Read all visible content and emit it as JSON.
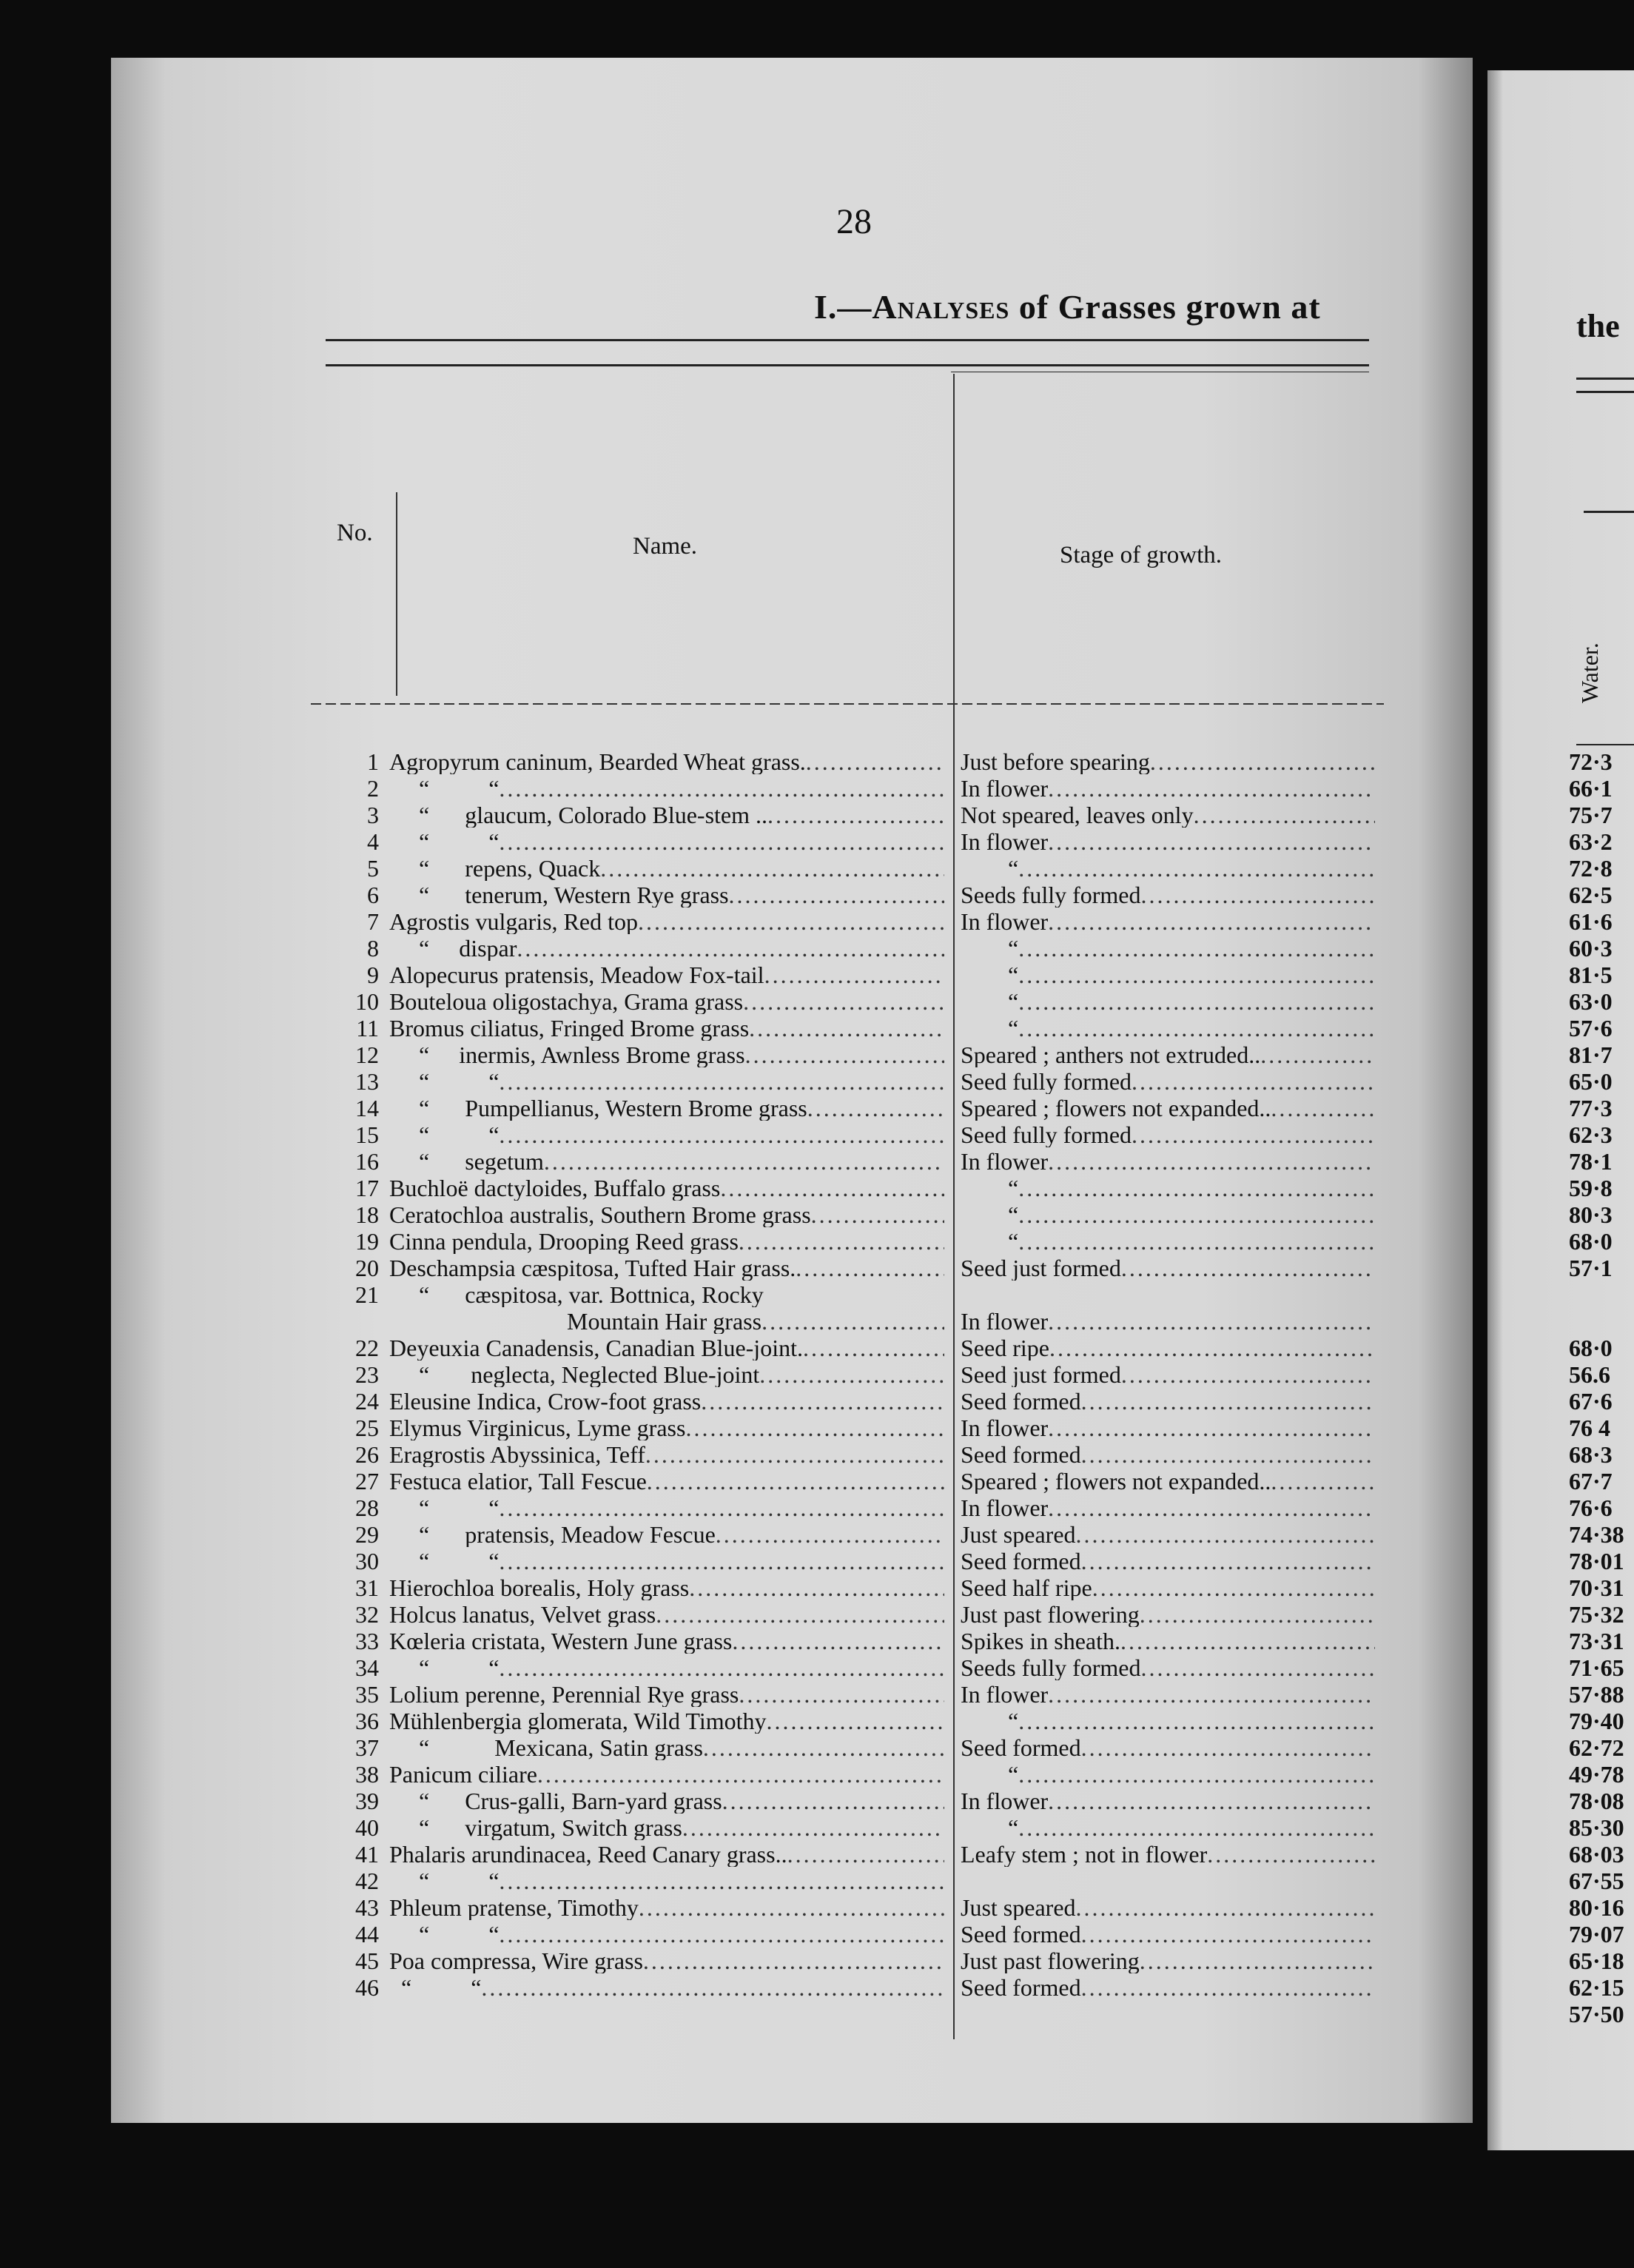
{
  "page_number": "28",
  "title_prefix": "I.—",
  "title_smallcaps": "Analyses",
  "title_rest": " of Grasses grown at",
  "right_page": {
    "title_fragment": "the",
    "column_header": "Water."
  },
  "headers": {
    "no": "No.",
    "name": "Name.",
    "stage": "Stage of growth."
  },
  "rows": [
    {
      "no": "1",
      "name": "Agropyrum caninum, Bearded Wheat grass.",
      "stage": "Just before spearing",
      "water": "72·3"
    },
    {
      "no": "2",
      "name": "     “          “",
      "stage": "In flower",
      "water": "66·1"
    },
    {
      "no": "3",
      "name": "     “      glaucum, Colorado Blue-stem ..",
      "stage": "Not speared, leaves only",
      "water": "75·7"
    },
    {
      "no": "4",
      "name": "     “          “",
      "stage": "In flower",
      "water": "63·2"
    },
    {
      "no": "5",
      "name": "     “      repens, Quack",
      "stage": "        “",
      "water": "72·8"
    },
    {
      "no": "6",
      "name": "     “      tenerum, Western Rye grass",
      "stage": "Seeds fully formed",
      "water": "62·5"
    },
    {
      "no": "7",
      "name": "Agrostis vulgaris, Red top",
      "stage": "In flower",
      "water": "61·6"
    },
    {
      "no": "8",
      "name": "     “     dispar",
      "stage": "        “",
      "water": "60·3"
    },
    {
      "no": "9",
      "name": "Alopecurus pratensis, Meadow Fox-tail",
      "stage": "        “",
      "water": "81·5"
    },
    {
      "no": "10",
      "name": "Bouteloua oligostachya, Grama grass",
      "stage": "        “",
      "water": "63·0"
    },
    {
      "no": "11",
      "name": "Bromus ciliatus, Fringed Brome grass",
      "stage": "        “",
      "water": "57·6"
    },
    {
      "no": "12",
      "name": "     “     inermis, Awnless Brome grass",
      "stage": "Speared ; anthers not extruded..",
      "water": "81·7"
    },
    {
      "no": "13",
      "name": "     “          “",
      "stage": "Seed fully formed",
      "water": "65·0"
    },
    {
      "no": "14",
      "name": "     “      Pumpellianus, Western Brome grass",
      "stage": "Speared ; flowers not expanded..",
      "water": "77·3"
    },
    {
      "no": "15",
      "name": "     “          “",
      "stage": "Seed fully formed",
      "water": "62·3"
    },
    {
      "no": "16",
      "name": "     “      segetum",
      "stage": "In flower",
      "water": "78·1"
    },
    {
      "no": "17",
      "name": "Buchloë dactyloides, Buffalo grass",
      "stage": "        “",
      "water": "59·8"
    },
    {
      "no": "18",
      "name": "Ceratochloa australis, Southern Brome grass",
      "stage": "        “",
      "water": "80·3"
    },
    {
      "no": "19",
      "name": "Cinna pendula, Drooping Reed grass",
      "stage": "        “",
      "water": "68·0"
    },
    {
      "no": "20",
      "name": "Deschampsia cæspitosa, Tufted Hair grass.",
      "stage": "Seed just formed",
      "water": "57·1"
    },
    {
      "no": "21",
      "name": "     “      cæspitosa, var. Bottnica, Rocky",
      "name2": "                              Mountain Hair grass",
      "stage": "In flower",
      "water": ""
    },
    {
      "no": "22",
      "name": "Deyeuxia Canadensis, Canadian Blue-joint.",
      "stage": "Seed ripe",
      "water": "68·0"
    },
    {
      "no": "23",
      "name": "     “       neglecta, Neglected Blue-joint",
      "stage": "Seed just formed",
      "water": "56.6"
    },
    {
      "no": "24",
      "name": "Eleusine Indica, Crow-foot grass",
      "stage": "Seed formed",
      "water": "67·6"
    },
    {
      "no": "25",
      "name": "Elymus Virginicus, Lyme grass",
      "stage": "In flower",
      "water": "76 4"
    },
    {
      "no": "26",
      "name": "Eragrostis Abyssinica, Teff",
      "stage": "Seed formed",
      "water": "68·3"
    },
    {
      "no": "27",
      "name": "Festuca elatior, Tall Fescue",
      "stage": "Speared ; flowers not expanded..",
      "water": "67·7"
    },
    {
      "no": "28",
      "name": "     “          “",
      "stage": "In flower",
      "water": "76·6"
    },
    {
      "no": "29",
      "name": "     “      pratensis, Meadow Fescue",
      "stage": "Just speared",
      "water": "74·38"
    },
    {
      "no": "30",
      "name": "     “          “",
      "stage": "Seed formed",
      "water": "78·01"
    },
    {
      "no": "31",
      "name": "Hierochloa borealis, Holy grass",
      "stage": "Seed half ripe",
      "water": "70·31"
    },
    {
      "no": "32",
      "name": "Holcus lanatus, Velvet grass",
      "stage": "Just past flowering",
      "water": "75·32"
    },
    {
      "no": "33",
      "name": "Kœleria cristata, Western June grass",
      "stage": "Spikes in sheath.",
      "water": "73·31"
    },
    {
      "no": "34",
      "name": "     “          “",
      "stage": "Seeds fully formed",
      "water": "71·65"
    },
    {
      "no": "35",
      "name": "Lolium perenne, Perennial Rye grass",
      "stage": "In flower",
      "water": "57·88"
    },
    {
      "no": "36",
      "name": "Mühlenbergia glomerata, Wild Timothy",
      "stage": "        “",
      "water": "79·40"
    },
    {
      "no": "37",
      "name": "     “           Mexicana, Satin grass",
      "stage": "Seed formed",
      "water": "62·72"
    },
    {
      "no": "38",
      "name": "Panicum ciliare",
      "stage": "        “",
      "water": "49·78"
    },
    {
      "no": "39",
      "name": "     “      Crus-galli, Barn-yard grass",
      "stage": "In flower",
      "water": "78·08"
    },
    {
      "no": "40",
      "name": "     “      virgatum, Switch grass",
      "stage": "        “",
      "water": "85·30"
    },
    {
      "no": "41",
      "name": "Phalaris arundinacea, Reed Canary grass..",
      "stage": "Leafy stem ; not in flower",
      "water": "68·03"
    },
    {
      "no": "42",
      "name": "     “          “",
      "stage": "",
      "water": "67·55"
    },
    {
      "no": "43",
      "name": "Phleum pratense, Timothy",
      "stage": "Just speared",
      "water": "80·16"
    },
    {
      "no": "44",
      "name": "     “          “",
      "stage": "Seed formed",
      "water": "79·07"
    },
    {
      "no": "45",
      "name": "Poa compressa, Wire grass",
      "stage": "Just past flowering",
      "water": "65·18"
    },
    {
      "no": "46",
      "name": "  “          “",
      "stage": "Seed formed",
      "water": "62·15"
    },
    {
      "no": "",
      "name": "",
      "stage": "",
      "water": "57·50"
    }
  ]
}
